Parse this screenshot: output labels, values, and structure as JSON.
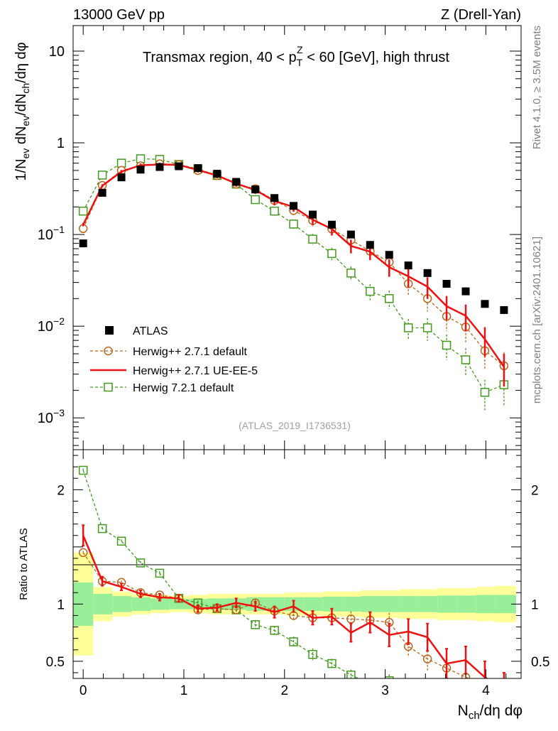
{
  "header": {
    "left": "13000 GeV pp",
    "right": "Z (Drell-Yan)"
  },
  "side_labels": {
    "rivet": "Rivet 4.1.0, ≥ 3.5M events",
    "mcplots": "mcplots.cern.ch [arXiv:2401.10621]"
  },
  "chart_data": {
    "type": "scatter",
    "title": "Transmax region, 40 < p_T^Z < 60 [GeV], high thrust",
    "title_parts": {
      "pre": "Transmax region, 40 < p",
      "sub": "T",
      "sup": "Z",
      "post": " < 60 [GeV], high thrust"
    },
    "analysis_id": "(ATLAS_2019_I1736531)",
    "xlabel": "N_ch/dη dφ",
    "xlabel_parts": {
      "main": "N",
      "sub": "ch",
      "rest": "/dη dφ"
    },
    "ylabel_main": "1/N_ev dN_ev/dN_ch/dη dφ",
    "ylabel_ratio": "Ratio to ATLAS",
    "xlim": [
      -0.1,
      4.35
    ],
    "ylim_main": [
      0.00045,
      19
    ],
    "ylim_ratio": [
      0.35,
      2.35
    ],
    "yscale_main": "log",
    "x_ticks": [
      0,
      1,
      2,
      3,
      4
    ],
    "x_tick_labels": [
      "0",
      "1",
      "2",
      "3",
      "4"
    ],
    "y_ticks_main": [
      {
        "v": 10,
        "base": "10",
        "exp": ""
      },
      {
        "v": 1,
        "base": "1",
        "exp": ""
      },
      {
        "v": 0.1,
        "base": "10",
        "exp": "−1"
      },
      {
        "v": 0.01,
        "base": "10",
        "exp": "−2"
      },
      {
        "v": 0.001,
        "base": "10",
        "exp": "−3"
      }
    ],
    "y_ticks_ratio": [
      {
        "v": 2,
        "label": "2"
      },
      {
        "v": 1,
        "label": "1"
      },
      {
        "v": 0.5,
        "label": "0.5"
      }
    ],
    "x": [
      0,
      0.19,
      0.38,
      0.57,
      0.76,
      0.95,
      1.14,
      1.33,
      1.52,
      1.71,
      1.9,
      2.09,
      2.28,
      2.47,
      2.66,
      2.85,
      3.04,
      3.23,
      3.42,
      3.61,
      3.8,
      3.99,
      4.18
    ],
    "bin_edges": [
      -0.1,
      0.1,
      0.29,
      0.48,
      0.67,
      0.86,
      1.05,
      1.24,
      1.43,
      1.62,
      1.81,
      2.0,
      2.19,
      2.38,
      2.57,
      2.76,
      2.95,
      3.14,
      3.33,
      3.52,
      3.71,
      3.9,
      4.09,
      4.3
    ],
    "band_inner": [
      0.19,
      0.09,
      0.07,
      0.06,
      0.05,
      0.045,
      0.045,
      0.05,
      0.05,
      0.06,
      0.06,
      0.06,
      0.06,
      0.065,
      0.065,
      0.07,
      0.07,
      0.07,
      0.07,
      0.075,
      0.075,
      0.08,
      0.08
    ],
    "band_outer": [
      0.45,
      0.15,
      0.11,
      0.09,
      0.08,
      0.07,
      0.08,
      0.09,
      0.09,
      0.09,
      0.09,
      0.1,
      0.1,
      0.11,
      0.11,
      0.12,
      0.12,
      0.13,
      0.13,
      0.14,
      0.14,
      0.15,
      0.16
    ],
    "series": [
      {
        "name": "ATLAS",
        "style": "data",
        "color": "#000000",
        "values": [
          0.08,
          0.285,
          0.42,
          0.51,
          0.545,
          0.555,
          0.53,
          0.46,
          0.375,
          0.31,
          0.25,
          0.205,
          0.165,
          0.128,
          0.1,
          0.077,
          0.06,
          0.046,
          0.038,
          0.029,
          0.024,
          0.0175,
          0.015
        ]
      },
      {
        "name": "Herwig++ 2.7.1 default",
        "style": "circle-dashed",
        "color": "#b8651c",
        "values": [
          0.116,
          0.343,
          0.5,
          0.56,
          0.59,
          0.58,
          0.5,
          0.44,
          0.355,
          0.315,
          0.235,
          0.183,
          0.142,
          0.115,
          0.087,
          0.066,
          0.05,
          0.029,
          0.02,
          0.0128,
          0.0098,
          0.0054,
          0.0037
        ],
        "ratio": [
          1.45,
          1.2,
          1.19,
          1.1,
          1.08,
          1.05,
          0.95,
          0.96,
          0.95,
          1.01,
          0.94,
          0.9,
          0.88,
          0.88,
          0.87,
          0.86,
          0.84,
          0.63,
          0.52,
          0.44,
          0.36,
          0.31,
          0.25
        ]
      },
      {
        "name": "Herwig++ 2.7.1 UE-EE-5",
        "style": "solid",
        "color": "#ee1111",
        "values": [
          0.128,
          0.34,
          0.485,
          0.57,
          0.58,
          0.575,
          0.505,
          0.44,
          0.36,
          0.305,
          0.232,
          0.2,
          0.145,
          0.115,
          0.075,
          0.065,
          0.044,
          0.035,
          0.027,
          0.0165,
          0.013,
          0.0072,
          0.0036
        ],
        "err_ratio": [
          0.09,
          0.04,
          0.03,
          0.03,
          0.03,
          0.03,
          0.03,
          0.03,
          0.04,
          0.04,
          0.05,
          0.05,
          0.06,
          0.07,
          0.08,
          0.09,
          0.1,
          0.11,
          0.12,
          0.13,
          0.12,
          0.14,
          0.15
        ],
        "ratio": [
          1.6,
          1.2,
          1.15,
          1.09,
          1.06,
          1.05,
          0.96,
          0.97,
          1.01,
          0.98,
          0.93,
          0.98,
          0.88,
          0.89,
          0.75,
          0.84,
          0.73,
          0.76,
          0.71,
          0.48,
          0.51,
          0.36,
          0.25
        ]
      },
      {
        "name": "Herwig 7.2.1 default",
        "style": "square-dashed",
        "color": "#44991f",
        "values": [
          0.18,
          0.445,
          0.6,
          0.67,
          0.66,
          0.58,
          0.52,
          0.44,
          0.355,
          0.24,
          0.18,
          0.13,
          0.089,
          0.062,
          0.038,
          0.024,
          0.02,
          0.0096,
          0.0096,
          0.0062,
          0.0043,
          0.0019,
          0.0023
        ],
        "ratio": [
          2.17,
          1.66,
          1.55,
          1.36,
          1.27,
          1.05,
          1.01,
          0.96,
          0.95,
          0.82,
          0.77,
          0.67,
          0.56,
          0.48,
          0.38,
          0.3,
          0.33,
          0.21,
          0.25,
          0.21,
          0.18,
          0.11,
          0.15
        ]
      }
    ]
  }
}
